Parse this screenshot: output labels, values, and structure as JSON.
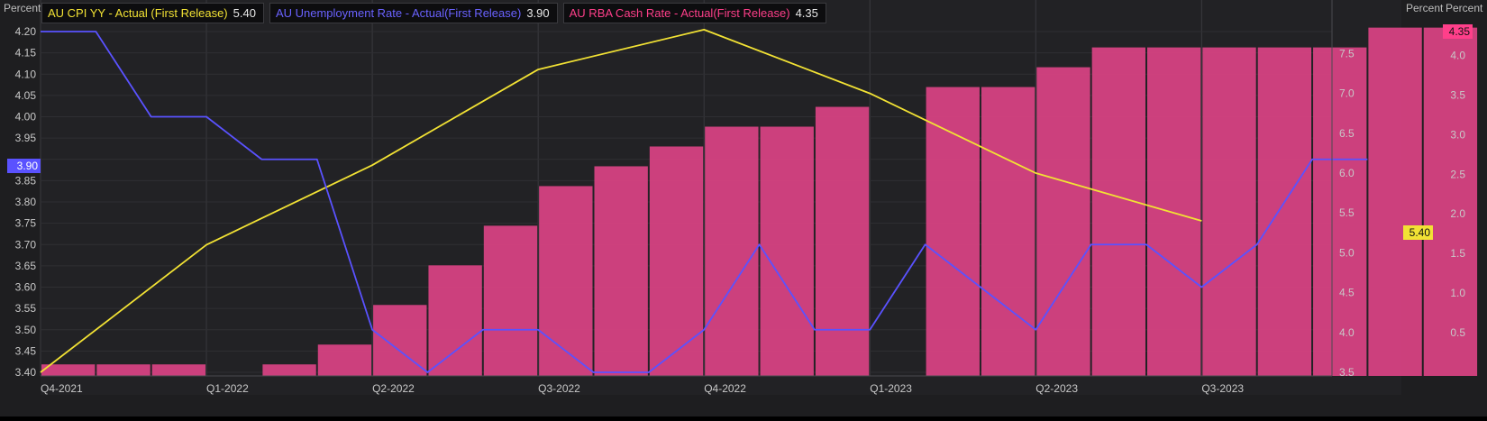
{
  "legend": [
    {
      "label": "AU CPI YY - Actual (First Release)",
      "value": "5.40",
      "color": "#f2e234"
    },
    {
      "label": "AU Unemployment Rate - Actual(First Release)",
      "value": "3.90",
      "color": "#5a52ff"
    },
    {
      "label": "AU RBA Cash Rate - Actual(First Release)",
      "value": "4.35",
      "color": "#ff3f8a"
    }
  ],
  "axis_units": {
    "left": "Percent",
    "right_inner": "Percent",
    "right_outer": "Percent"
  },
  "badges": {
    "unemployment": "3.90",
    "cpi": "5.40",
    "cash_rate": "4.35"
  },
  "chart_data": {
    "type": "line",
    "x_ticks": [
      "Q4-2021",
      "Q1-2022",
      "Q2-2022",
      "Q3-2022",
      "Q4-2022",
      "Q1-2023",
      "Q2-2023",
      "Q3-2023"
    ],
    "months": [
      "Oct-2021",
      "Nov-2021",
      "Dec-2021",
      "Jan-2022",
      "Feb-2022",
      "Mar-2022",
      "Apr-2022",
      "May-2022",
      "Jun-2022",
      "Jul-2022",
      "Aug-2022",
      "Sep-2022",
      "Oct-2022",
      "Nov-2022",
      "Dec-2022",
      "Jan-2023",
      "Feb-2023",
      "Mar-2023",
      "Apr-2023",
      "May-2023",
      "Jun-2023",
      "Jul-2023",
      "Aug-2023",
      "Sep-2023",
      "Oct-2023",
      "Nov-2023"
    ],
    "series": [
      {
        "name": "AU Unemployment Rate - Actual(First Release)",
        "type": "line",
        "axis": "left",
        "color": "#5a52ff",
        "x": [
          "Oct-2021",
          "Nov-2021",
          "Dec-2021",
          "Jan-2022",
          "Feb-2022",
          "Mar-2022",
          "Apr-2022",
          "May-2022",
          "Jun-2022",
          "Jul-2022",
          "Aug-2022",
          "Sep-2022",
          "Oct-2022",
          "Nov-2022",
          "Dec-2022",
          "Jan-2023",
          "Feb-2023",
          "Mar-2023",
          "Apr-2023",
          "May-2023",
          "Jun-2023",
          "Jul-2023",
          "Aug-2023",
          "Sep-2023",
          "Oct-2023"
        ],
        "values": [
          4.2,
          4.2,
          4.0,
          4.0,
          3.9,
          3.9,
          3.5,
          3.4,
          3.5,
          3.5,
          3.4,
          3.4,
          3.5,
          3.7,
          3.5,
          3.5,
          3.7,
          3.6,
          3.5,
          3.7,
          3.7,
          3.6,
          3.7,
          3.9,
          3.9
        ]
      },
      {
        "name": "AU CPI YY - Actual (First Release)",
        "type": "line",
        "axis": "right_inner",
        "color": "#f2e234",
        "x": [
          "Oct-2021",
          "Jan-2022",
          "Apr-2022",
          "Jul-2022",
          "Oct-2022",
          "Jan-2023",
          "Apr-2023",
          "Jul-2023"
        ],
        "values": [
          3.5,
          5.1,
          6.1,
          7.3,
          7.8,
          7.0,
          6.0,
          5.4
        ]
      },
      {
        "name": "AU RBA Cash Rate - Actual(First Release)",
        "type": "bar",
        "axis": "right_outer",
        "color": "#d64282",
        "x": [
          "Oct-2021",
          "Nov-2021",
          "Dec-2021",
          "Feb-2022",
          "Mar-2022",
          "Apr-2022",
          "May-2022",
          "Jun-2022",
          "Jul-2022",
          "Aug-2022",
          "Sep-2022",
          "Oct-2022",
          "Nov-2022",
          "Dec-2022",
          "Feb-2023",
          "Mar-2023",
          "Apr-2023",
          "May-2023",
          "Jun-2023",
          "Jul-2023",
          "Aug-2023",
          "Sep-2023",
          "Oct-2023",
          "Nov-2023"
        ],
        "values": [
          0.1,
          0.1,
          0.1,
          0.1,
          0.35,
          0.85,
          1.35,
          1.85,
          2.35,
          2.6,
          2.85,
          3.1,
          3.1,
          3.35,
          3.6,
          3.6,
          3.85,
          4.1,
          4.1,
          4.1,
          4.1,
          4.1,
          4.35,
          4.35
        ]
      }
    ],
    "axes": {
      "left": {
        "label": "Percent",
        "ylim": [
          3.4,
          4.2
        ],
        "ticks": [
          "3.40",
          "3.45",
          "3.50",
          "3.55",
          "3.60",
          "3.65",
          "3.70",
          "3.75",
          "3.80",
          "3.85",
          "3.90",
          "3.95",
          "4.00",
          "4.05",
          "4.10",
          "4.15",
          "4.20"
        ]
      },
      "right_inner": {
        "label": "Percent",
        "ylim": [
          3.5,
          7.8
        ],
        "ticks": [
          "3.5",
          "4.0",
          "4.5",
          "5.0",
          "5.5",
          "6.0",
          "6.5",
          "7.0",
          "7.5"
        ]
      },
      "right_outer": {
        "label": "Percent",
        "ylim": [
          0,
          4.35
        ],
        "ticks": [
          "0.5",
          "1.0",
          "1.5",
          "2.0",
          "2.5",
          "3.0",
          "3.5",
          "4.0"
        ]
      }
    },
    "grid": true,
    "legend_position": "top-left"
  }
}
